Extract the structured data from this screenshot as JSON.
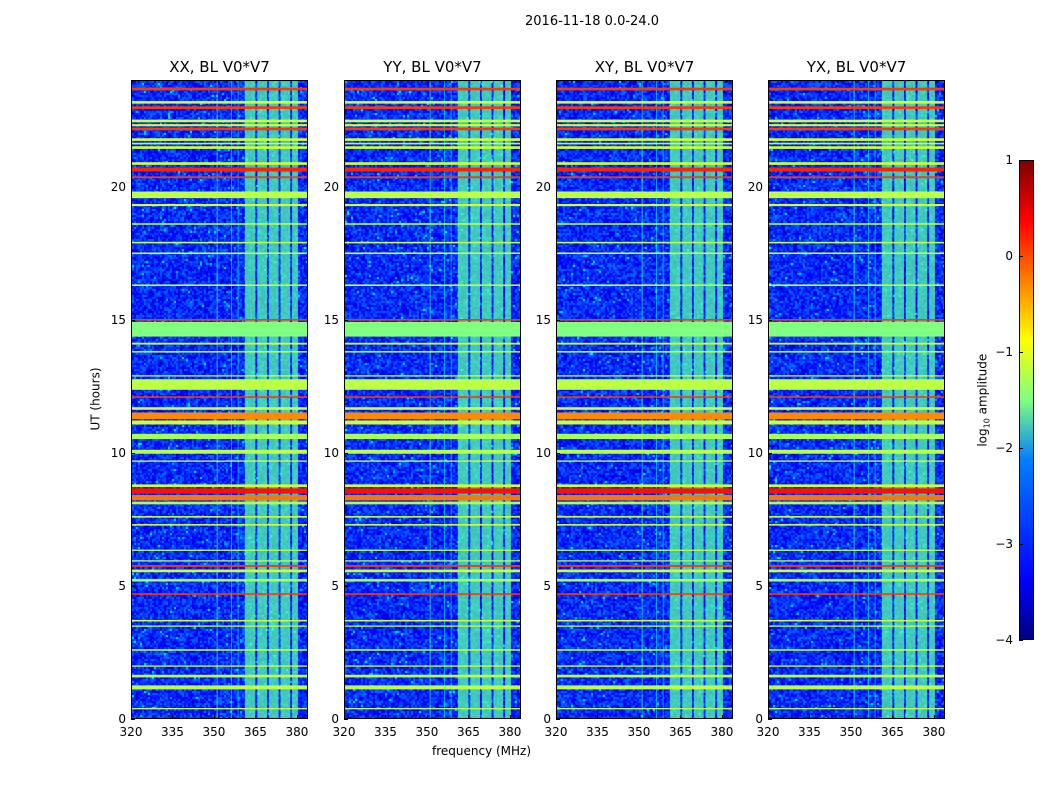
{
  "chart_data": {
    "type": "heatmap",
    "title": "2016-11-18 0.0-24.0",
    "xlabel": "frequency (MHz)",
    "ylabel": "UT (hours)",
    "xlim": [
      320,
      384
    ],
    "ylim": [
      0,
      24
    ],
    "xticks": [
      "320",
      "335",
      "350",
      "365",
      "380"
    ],
    "xtick_values": [
      320,
      335,
      350,
      365,
      380
    ],
    "yticks": [
      "0",
      "5",
      "10",
      "15",
      "20"
    ],
    "ytick_values": [
      0,
      5,
      10,
      15,
      20
    ],
    "panels": [
      "XX, BL V0*V7",
      "YY, BL V0*V7",
      "XY, BL V0*V7",
      "YX, BL V0*V7"
    ],
    "colorbar": {
      "label_main": "log",
      "label_sub": "10",
      "label_rest": " amplitude",
      "range": [
        -4,
        1
      ],
      "ticks": [
        "1",
        "0",
        "−1",
        "−2",
        "−3",
        "−4"
      ],
      "tick_values": [
        1,
        0,
        -1,
        -2,
        -3,
        -4
      ]
    },
    "background_level": -3.2,
    "band_level": -1.7,
    "band_columns": [
      [
        360.8,
        364.6
      ],
      [
        365.3,
        368.8
      ],
      [
        369.5,
        373.0
      ],
      [
        373.7,
        377.2
      ],
      [
        377.9,
        380.0
      ]
    ],
    "rfi_channels": [
      [
        350.6,
        351.0,
        -1.8
      ],
      [
        355.8,
        356.1,
        -2.2
      ],
      [
        358.2,
        358.5,
        -2.2
      ]
    ],
    "rfi_times": [
      [
        23.65,
        23.75,
        0.1
      ],
      [
        23.15,
        23.25,
        -1.1
      ],
      [
        22.95,
        23.05,
        0.1
      ],
      [
        22.45,
        22.55,
        -1.1
      ],
      [
        22.3,
        22.38,
        -1.1
      ],
      [
        22.15,
        22.25,
        0.1
      ],
      [
        21.75,
        21.85,
        -1.1
      ],
      [
        21.62,
        21.68,
        -1.1
      ],
      [
        21.45,
        21.55,
        -1.1
      ],
      [
        20.85,
        20.95,
        -1.1
      ],
      [
        20.6,
        20.75,
        0.2
      ],
      [
        20.35,
        20.42,
        0.1
      ],
      [
        19.6,
        19.85,
        -1.2
      ],
      [
        19.3,
        19.38,
        -1.1
      ],
      [
        18.6,
        18.66,
        -1.2
      ],
      [
        17.9,
        17.96,
        -1.2
      ],
      [
        17.5,
        17.56,
        -1.2
      ],
      [
        16.3,
        16.36,
        -1.2
      ],
      [
        15.0,
        15.06,
        0.1
      ],
      [
        14.4,
        14.95,
        -1.5
      ],
      [
        14.1,
        14.17,
        -1.1
      ],
      [
        13.8,
        13.86,
        -1.2
      ],
      [
        12.9,
        12.95,
        -1.1
      ],
      [
        12.4,
        12.8,
        -1.2
      ],
      [
        12.1,
        12.16,
        0.1
      ],
      [
        11.65,
        11.75,
        -1.1
      ],
      [
        11.3,
        11.55,
        -0.3
      ],
      [
        11.1,
        11.25,
        -1.1
      ],
      [
        10.55,
        10.75,
        -1.3
      ],
      [
        10.0,
        10.15,
        -1.2
      ],
      [
        9.7,
        9.75,
        -1.1
      ],
      [
        8.75,
        8.85,
        -1.1
      ],
      [
        8.5,
        8.7,
        0.3
      ],
      [
        8.25,
        8.45,
        -0.2
      ],
      [
        8.1,
        8.2,
        -1.3
      ],
      [
        7.6,
        7.66,
        -1.1
      ],
      [
        7.3,
        7.36,
        -1.1
      ],
      [
        6.35,
        6.4,
        -1.2
      ],
      [
        5.95,
        6.0,
        -1.2
      ],
      [
        5.75,
        5.82,
        0.1
      ],
      [
        5.55,
        5.65,
        -1.1
      ],
      [
        5.2,
        5.3,
        -1.3
      ],
      [
        4.7,
        4.76,
        0.1
      ],
      [
        3.7,
        3.76,
        -1.1
      ],
      [
        3.5,
        3.55,
        -1.2
      ],
      [
        2.6,
        2.66,
        -1.2
      ],
      [
        2.0,
        2.05,
        -1.1
      ],
      [
        1.6,
        1.7,
        -1.2
      ],
      [
        1.15,
        1.3,
        -1.2
      ],
      [
        0.4,
        0.45,
        -1.2
      ]
    ]
  }
}
